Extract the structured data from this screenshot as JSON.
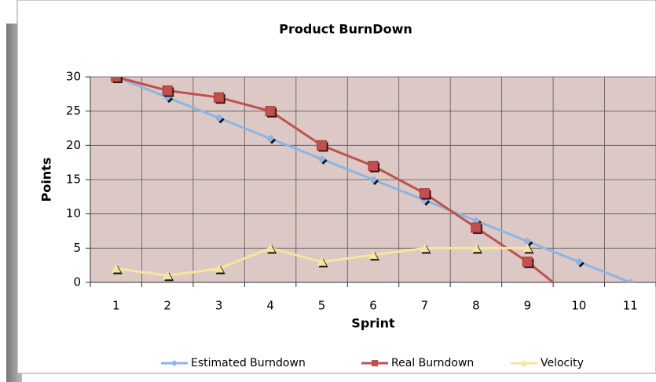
{
  "chart_data": {
    "type": "line",
    "title": "Product BurnDown",
    "x_label": "Sprint",
    "y_label": "Points",
    "categories": [
      "1",
      "2",
      "3",
      "4",
      "5",
      "6",
      "7",
      "8",
      "9",
      "10",
      "11"
    ],
    "series": [
      {
        "name": "Estimated Burndown",
        "color": "#8eb4e3",
        "marker": "diamond",
        "values": [
          30,
          27,
          24,
          21,
          18,
          15,
          12,
          9,
          6,
          3,
          0
        ]
      },
      {
        "name": "Real Burndown",
        "color": "#c0504d",
        "marker": "square",
        "values": [
          30,
          28,
          27,
          25,
          20,
          17,
          13,
          8,
          3,
          -3,
          null
        ]
      },
      {
        "name": "Velocity",
        "color": "#f7e59e",
        "marker": "triangle",
        "values": [
          2,
          1,
          2,
          5,
          3,
          4,
          5,
          5,
          5,
          null,
          null
        ]
      }
    ],
    "ylim": [
      0,
      30
    ],
    "yticks": [
      0,
      5,
      10,
      15,
      20,
      25,
      30
    ],
    "grid": true,
    "legend": "bottom"
  }
}
